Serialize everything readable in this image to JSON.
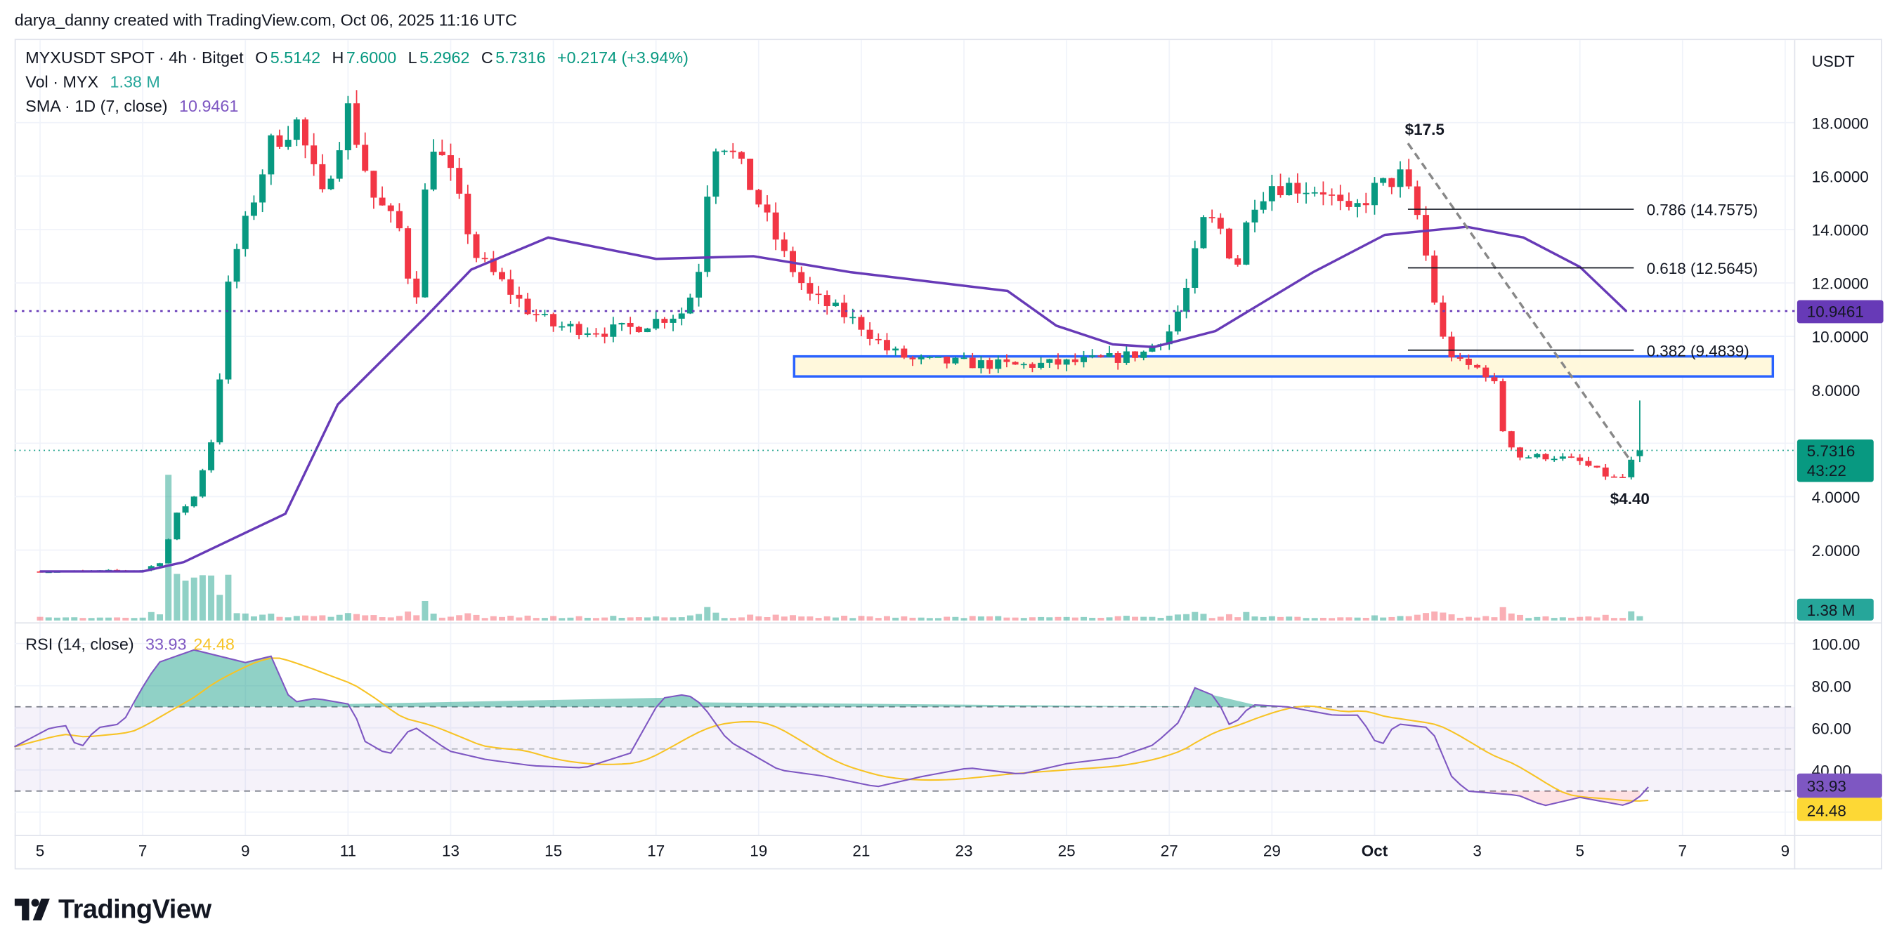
{
  "header": {
    "credit": "darya_danny created with TradingView.com, Oct 06, 2025 11:16 UTC"
  },
  "legend": {
    "symbol": "MYXUSDT SPOT · 4h · Bitget",
    "o_label": "O",
    "o": "5.5142",
    "h_label": "H",
    "h": "7.6000",
    "l_label": "L",
    "l": "5.2962",
    "c_label": "C",
    "c": "5.7316",
    "change": "+0.2174 (+3.94%)",
    "vol_label": "Vol · MYX",
    "vol": "1.38 M",
    "sma_label": "SMA · 1D (7, close)",
    "sma": "10.9461",
    "rsi_label": "RSI (14, close)",
    "rsi": "33.93",
    "rsi_ma": "24.48"
  },
  "axis": {
    "currency": "USDT",
    "price_ticks": [
      "2.0000",
      "4.0000",
      "8.0000",
      "10.0000",
      "12.0000",
      "14.0000",
      "16.0000",
      "18.0000"
    ],
    "rsi_ticks": [
      "40.00",
      "60.00",
      "80.00",
      "100.00"
    ],
    "time_ticks": [
      "5",
      "7",
      "9",
      "11",
      "13",
      "15",
      "17",
      "19",
      "21",
      "23",
      "25",
      "27",
      "29",
      "Oct",
      "3",
      "5",
      "7",
      "9"
    ],
    "sma_badge": "10.9461",
    "price_badge": "5.7316",
    "countdown": "43:22",
    "vol_badge": "1.38 M",
    "rsi_badge": "33.93",
    "rsi_ma_badge": "24.48"
  },
  "annotations": {
    "high_label": "$17.5",
    "low_label": "$4.40",
    "fib": [
      {
        "label": "0.786 (14.7575)",
        "price": 14.7575
      },
      {
        "label": "0.618 (12.5645)",
        "price": 12.5645
      },
      {
        "label": "0.382 (9.4839)",
        "price": 9.4839
      }
    ],
    "zone": {
      "low": 8.5,
      "high": 9.25
    }
  },
  "colors": {
    "up": "#089981",
    "down": "#f23645",
    "sma": "#673ab7",
    "rsi": "#7e57c2",
    "rsi_ma": "#f7c325",
    "zone_border": "#2962ff",
    "zone_fill": "#fff8dc"
  },
  "brand": {
    "name": "TradingView"
  },
  "chart_data": {
    "type": "candlestick",
    "title": "MYXUSDT SPOT · 4h · Bitget",
    "x_unit": "days since Sep 5 2025",
    "price_anchors": [
      [
        0,
        1.2
      ],
      [
        1,
        1.22
      ],
      [
        2,
        1.25
      ],
      [
        2.4,
        1.6
      ],
      [
        2.6,
        3.2
      ],
      [
        3,
        4.0
      ],
      [
        3.4,
        6.5
      ],
      [
        3.7,
        12.5
      ],
      [
        4,
        14.2
      ],
      [
        4.5,
        17.2
      ],
      [
        5,
        18
      ],
      [
        5.5,
        15.2
      ],
      [
        6,
        18.5
      ],
      [
        6.5,
        15.2
      ],
      [
        7,
        14
      ],
      [
        7.3,
        11
      ],
      [
        7.6,
        17.5
      ],
      [
        8,
        16
      ],
      [
        8.5,
        13
      ],
      [
        9,
        12
      ],
      [
        9.5,
        11
      ],
      [
        10,
        10.4
      ],
      [
        11,
        10.2
      ],
      [
        11.5,
        10.3
      ],
      [
        12,
        10.6
      ],
      [
        12.5,
        10.9
      ],
      [
        12.8,
        12
      ],
      [
        13,
        15.5
      ],
      [
        13.2,
        17.6
      ],
      [
        13.6,
        16.5
      ],
      [
        14,
        15
      ],
      [
        14.5,
        13
      ],
      [
        15,
        11.5
      ],
      [
        15.5,
        11
      ],
      [
        16,
        10.4
      ],
      [
        16.5,
        9.5
      ],
      [
        17,
        9.1
      ],
      [
        18,
        9.0
      ],
      [
        19,
        8.9
      ],
      [
        20,
        9.0
      ],
      [
        21,
        9.2
      ],
      [
        21.5,
        9.4
      ],
      [
        22,
        10.2
      ],
      [
        22.3,
        11.5
      ],
      [
        22.7,
        14.5
      ],
      [
        23,
        14.0
      ],
      [
        23.3,
        12.5
      ],
      [
        23.6,
        15
      ],
      [
        24,
        15.7
      ],
      [
        25,
        15.5
      ],
      [
        25.5,
        14.5
      ],
      [
        26,
        15.5
      ],
      [
        26.5,
        16
      ],
      [
        26.8,
        14.8
      ],
      [
        27,
        13
      ],
      [
        27.3,
        10
      ],
      [
        27.6,
        9.0
      ],
      [
        28,
        8.8
      ],
      [
        28.3,
        8.5
      ],
      [
        28.5,
        6.5
      ],
      [
        28.8,
        5.5
      ],
      [
        29.5,
        5.5
      ],
      [
        30,
        5.3
      ],
      [
        30.5,
        4.8
      ],
      [
        30.8,
        4.6
      ],
      [
        31,
        5.3
      ],
      [
        31.2,
        5.51
      ]
    ],
    "sma_points": [
      [
        0,
        1.2
      ],
      [
        2,
        1.2
      ],
      [
        2.8,
        1.55
      ],
      [
        4.78,
        3.36
      ],
      [
        5.8,
        7.45
      ],
      [
        7.5,
        10.7
      ],
      [
        8.4,
        12.5
      ],
      [
        9.9,
        13.7
      ],
      [
        12,
        12.9
      ],
      [
        13.9,
        13.0
      ],
      [
        15.8,
        12.4
      ],
      [
        18.85,
        11.7
      ],
      [
        19.8,
        10.4
      ],
      [
        20.9,
        9.7
      ],
      [
        21.7,
        9.6
      ],
      [
        22.9,
        10.2
      ],
      [
        24.8,
        12.4
      ],
      [
        26.2,
        13.8
      ],
      [
        27.8,
        14.1
      ],
      [
        28.9,
        13.7
      ],
      [
        30,
        12.6
      ],
      [
        30.9,
        10.95
      ]
    ],
    "rsi_points": [
      [
        -0.5,
        51
      ],
      [
        0.2,
        60
      ],
      [
        0.5,
        61
      ],
      [
        0.75,
        49
      ],
      [
        1.1,
        60
      ],
      [
        1.6,
        62
      ],
      [
        1.94,
        77
      ],
      [
        2.3,
        91
      ],
      [
        3.0,
        97
      ],
      [
        4.0,
        91
      ],
      [
        4.5,
        94
      ],
      [
        4.9,
        72
      ],
      [
        5.37,
        74
      ],
      [
        6.08,
        71
      ],
      [
        6.3,
        54
      ],
      [
        6.8,
        47
      ],
      [
        7.26,
        61
      ],
      [
        7.97,
        49
      ],
      [
        8.68,
        45
      ],
      [
        9.6,
        42
      ],
      [
        10.6,
        41
      ],
      [
        11.5,
        48
      ],
      [
        12.1,
        74
      ],
      [
        12.6,
        76
      ],
      [
        12.9,
        71
      ],
      [
        13.4,
        54
      ],
      [
        14.4,
        40
      ],
      [
        15.3,
        37
      ],
      [
        16.3,
        32
      ],
      [
        17.2,
        37
      ],
      [
        18.1,
        41
      ],
      [
        19.1,
        38
      ],
      [
        20.0,
        43
      ],
      [
        21.0,
        46
      ],
      [
        21.7,
        52
      ],
      [
        22.2,
        63
      ],
      [
        22.5,
        79
      ],
      [
        22.9,
        75
      ],
      [
        23.2,
        60
      ],
      [
        23.6,
        71
      ],
      [
        24.3,
        70
      ],
      [
        25.2,
        66
      ],
      [
        25.7,
        66
      ],
      [
        26.1,
        50
      ],
      [
        26.4,
        62
      ],
      [
        27.1,
        60
      ],
      [
        27.5,
        37
      ],
      [
        27.8,
        30
      ],
      [
        28.8,
        28
      ],
      [
        29.3,
        23
      ],
      [
        30,
        27
      ],
      [
        30.9,
        23
      ],
      [
        31.2,
        28
      ],
      [
        31.4,
        33.93
      ]
    ],
    "rsi_ma_last": 24.48,
    "rsi_levels": [
      70,
      50,
      30
    ],
    "ylim_price": [
      0,
      19.5
    ],
    "ylim_rsi": [
      10,
      100
    ],
    "last_candle": {
      "open": 5.5142,
      "high": 7.6,
      "low": 5.2962,
      "close": 5.7316
    },
    "volume_last": "1.38 M"
  }
}
